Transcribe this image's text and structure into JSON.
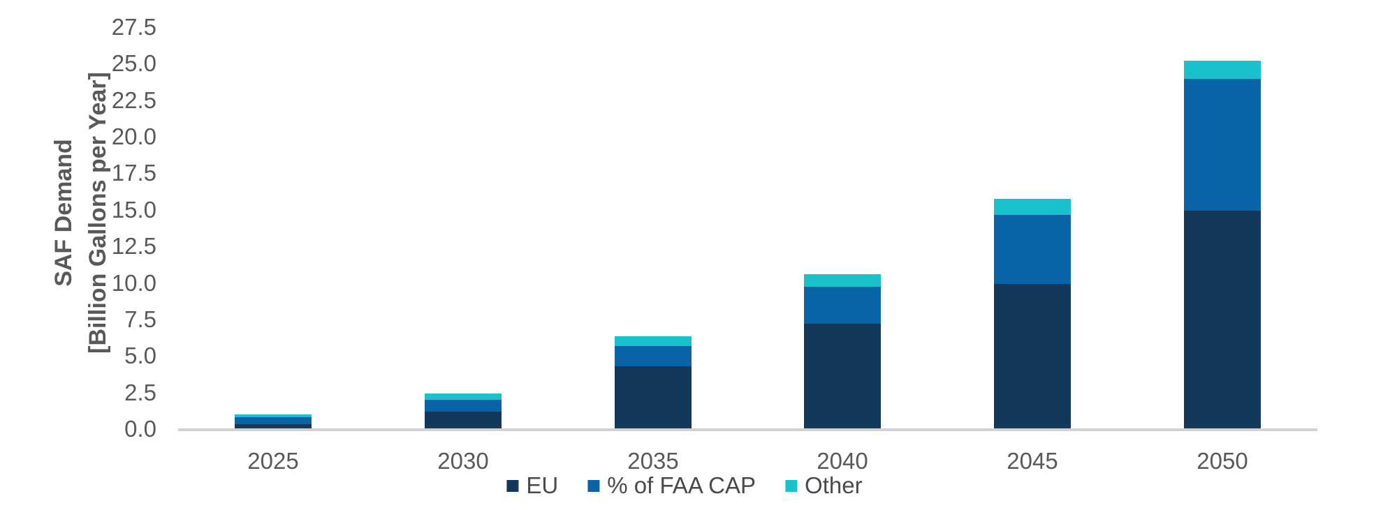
{
  "chart_data": {
    "type": "bar",
    "stacked": true,
    "title": "",
    "categories": [
      "2025",
      "2030",
      "2035",
      "2040",
      "2045",
      "2050"
    ],
    "series": [
      {
        "name": "EU",
        "color": "#12395c",
        "values": [
          0.4,
          1.25,
          4.35,
          7.25,
          10.0,
          15.0
        ]
      },
      {
        "name": "% of FAA CAP",
        "color": "#0b64a8",
        "values": [
          0.45,
          0.8,
          1.4,
          2.55,
          4.7,
          9.0
        ]
      },
      {
        "name": "Other",
        "color": "#1ac1cb",
        "values": [
          0.2,
          0.45,
          0.65,
          0.85,
          1.1,
          1.25
        ]
      }
    ],
    "ylabel_line1": "SAF Demand",
    "ylabel_line2": "[Billion Gallons per Year]",
    "xlabel": "",
    "ylim": [
      0,
      27.5
    ],
    "ytick_step": 2.5,
    "yticks": [
      "27.5",
      "25.0",
      "22.5",
      "20.0",
      "17.5",
      "15.0",
      "12.5",
      "10.0",
      "7.5",
      "5.0",
      "2.5",
      "0.0"
    ],
    "legend_position": "bottom",
    "grid": false
  },
  "colors": {
    "axis_line": "#d2d2d2",
    "tick_text": "#595959",
    "legend_text": "#4a4a4a",
    "background": "#ffffff"
  }
}
